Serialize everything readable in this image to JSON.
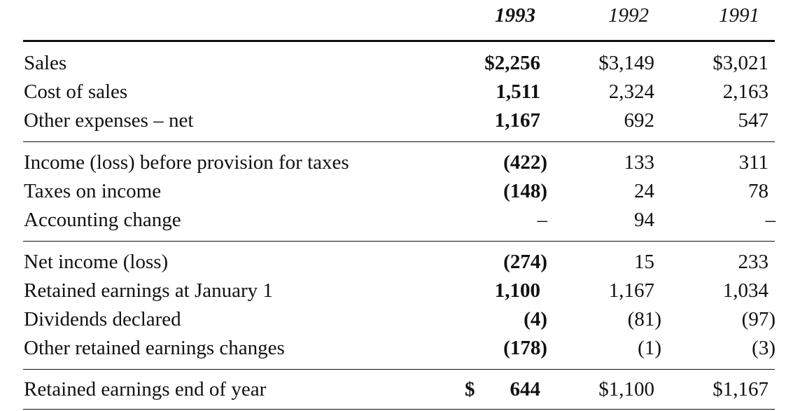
{
  "headers": {
    "y1993": "1993",
    "y1992": "1992",
    "y1991": "1991"
  },
  "rows": [
    {
      "label": "Sales",
      "y1993": "$2,256",
      "y1992": "$3,149",
      "y1991": "$3,021"
    },
    {
      "label": "Cost of sales",
      "y1993": "1,511",
      "y1992": "2,324",
      "y1991": "2,163"
    },
    {
      "label": "Other expenses – net",
      "y1993": "1,167",
      "y1992": "692",
      "y1991": "547"
    },
    {
      "label": "Income (loss) before provision for taxes",
      "y1993": "(422)",
      "y1992": "133",
      "y1991": "311"
    },
    {
      "label": "Taxes on income",
      "y1993": "(148)",
      "y1992": "24",
      "y1991": "78"
    },
    {
      "label": "Accounting change",
      "y1993": "–",
      "y1992": "94",
      "y1991": "–"
    },
    {
      "label": "Net income (loss)",
      "y1993": "(274)",
      "y1992": "15",
      "y1991": "233"
    },
    {
      "label": "Retained earnings at January 1",
      "y1993": "1,100",
      "y1992": "1,167",
      "y1991": "1,034"
    },
    {
      "label": "Dividends declared",
      "y1993": "(4)",
      "y1992": "(81)",
      "y1991": "(97)"
    },
    {
      "label": "Other retained earnings changes",
      "y1993": "(178)",
      "y1992": "(1)",
      "y1991": "(3)"
    },
    {
      "label": "Retained earnings end of year",
      "y1993_symbol": "$",
      "y1993": "644",
      "y1992": "$1,100",
      "y1991": "$1,167"
    }
  ]
}
